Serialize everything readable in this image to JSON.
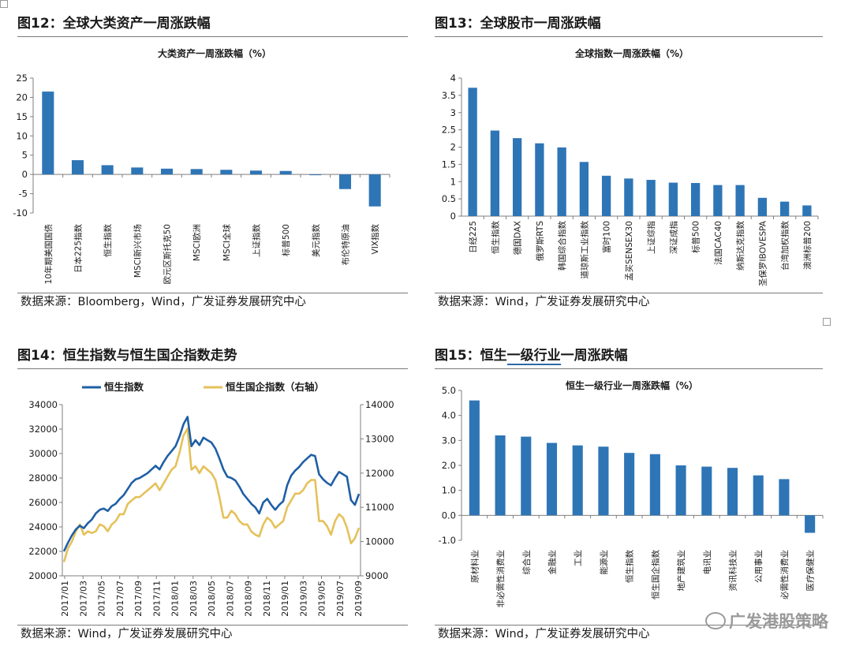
{
  "panels": [
    {
      "fig_label": "图12",
      "fig_sep": "：",
      "fig_title": "全球大类资产一周涨跌幅",
      "source": "数据来源：Bloomberg，Wind，广发证券发展研究中心"
    },
    {
      "fig_label": "图13",
      "fig_sep": "：",
      "fig_title": "全球股市一周涨跌幅",
      "source": "数据来源：Wind，广发证券发展研究中心"
    },
    {
      "fig_label": "图14",
      "fig_sep": "：",
      "fig_title": "恒生指数与恒生国企指数走势",
      "source": "数据来源：Wind，广发证券发展研究中心"
    },
    {
      "fig_label": "图15",
      "fig_sep": "：",
      "fig_title_pre": "恒生",
      "fig_title_u": "一级行业",
      "fig_title_post": "一周涨跌幅",
      "source": "数据来源：Wind，广发证券发展研究中心"
    }
  ],
  "watermark": "广发港股策略",
  "colors": {
    "bar": "#2e75b6",
    "hsi": "#1f5fa5",
    "hscei": "#e5c15a",
    "axis": "#7f7f7f"
  },
  "chart_data": [
    {
      "type": "bar",
      "title": "大类资产一周涨跌幅（%）",
      "categories": [
        "10年期美国国债",
        "日本225指数",
        "恒生指数",
        "MSCI新兴市场",
        "欧元区斯托克50",
        "MSCI欧洲",
        "MSCI全球",
        "上证指数",
        "标普500",
        "美元指数",
        "布伦特原油",
        "VIX指数"
      ],
      "values": [
        21.5,
        3.7,
        2.4,
        1.8,
        1.5,
        1.4,
        1.2,
        1.0,
        0.9,
        -0.2,
        -3.8,
        -8.3
      ],
      "ylim": [
        -10,
        25
      ],
      "yticks": [
        -10,
        -5,
        0,
        5,
        10,
        15,
        20,
        25
      ]
    },
    {
      "type": "bar",
      "title": "全球指数一周涨跌幅（%）",
      "categories": [
        "日经225",
        "恒生指数",
        "德国DAX",
        "俄罗斯RTS",
        "韩国综合指数",
        "道琼斯工业指数",
        "富时100",
        "孟买SENSEX30",
        "上证综指",
        "深证成指",
        "标普500",
        "法国CAC40",
        "纳斯达克指数",
        "圣保罗IBOVESPA",
        "台湾加权指数",
        "澳洲标普200"
      ],
      "values": [
        3.72,
        2.48,
        2.26,
        2.11,
        1.99,
        1.57,
        1.17,
        1.09,
        1.05,
        0.97,
        0.96,
        0.9,
        0.9,
        0.53,
        0.42,
        0.31
      ],
      "ylim": [
        0,
        4
      ],
      "yticks": [
        0,
        0.5,
        1,
        1.5,
        2,
        2.5,
        3,
        3.5,
        4
      ]
    },
    {
      "type": "line",
      "legend": [
        "恒生指数",
        "恒生国企指数（右轴）"
      ],
      "x_labels": [
        "2017/01",
        "2017/03",
        "2017/05",
        "2017/07",
        "2017/09",
        "2017/11",
        "2018/01",
        "2018/03",
        "2018/05",
        "2018/07",
        "2018/09",
        "2018/11",
        "2019/01",
        "2019/03",
        "2019/05",
        "2019/07",
        "2019/09"
      ],
      "ylim_left": [
        20000,
        34000
      ],
      "yticks_left": [
        20000,
        22000,
        24000,
        26000,
        28000,
        30000,
        32000,
        34000
      ],
      "ylim_right": [
        9000,
        14000
      ],
      "yticks_right": [
        9000,
        10000,
        11000,
        12000,
        13000,
        14000
      ],
      "series": [
        {
          "name": "恒生指数",
          "axis": "left",
          "values": [
            22000,
            22700,
            23300,
            23800,
            24100,
            23900,
            24300,
            24600,
            25100,
            25400,
            25500,
            25300,
            25700,
            25900,
            26300,
            26600,
            27100,
            27600,
            27900,
            28000,
            28200,
            28400,
            28700,
            29000,
            28700,
            29300,
            29800,
            30200,
            30600,
            31400,
            32400,
            33000,
            30600,
            31100,
            30700,
            31300,
            31100,
            30900,
            30400,
            29600,
            28700,
            28100,
            28000,
            27800,
            27300,
            26700,
            26300,
            25900,
            25600,
            25100,
            26000,
            26300,
            25800,
            25400,
            25800,
            26100,
            27400,
            28200,
            28600,
            28900,
            29300,
            29600,
            29900,
            29800,
            28300,
            27900,
            27600,
            27400,
            28000,
            28500,
            28300,
            28100,
            26200,
            25800,
            26700
          ]
        },
        {
          "name": "恒生国企指数（右轴）",
          "axis": "right",
          "values": [
            9400,
            9800,
            10000,
            10300,
            10500,
            10200,
            10300,
            10250,
            10300,
            10500,
            10450,
            10300,
            10500,
            10600,
            10800,
            10800,
            11100,
            11200,
            11300,
            11300,
            11400,
            11500,
            11600,
            11700,
            11500,
            11700,
            11900,
            12100,
            12200,
            12600,
            13100,
            13300,
            12100,
            12200,
            12000,
            12200,
            12100,
            12000,
            11800,
            11300,
            10700,
            10700,
            10900,
            10800,
            10600,
            10500,
            10500,
            10300,
            10200,
            10150,
            10500,
            10700,
            10600,
            10400,
            10500,
            10600,
            11000,
            11200,
            11400,
            11400,
            11500,
            11700,
            11800,
            11800,
            10600,
            10600,
            10450,
            10200,
            10600,
            10800,
            10700,
            10400,
            9950,
            10100,
            10400
          ]
        }
      ]
    },
    {
      "type": "bar",
      "title": "恒生一级行业一周涨跌幅（%）",
      "categories": [
        "原材料业",
        "非必需性消费业",
        "综合业",
        "金融业",
        "工业",
        "能源业",
        "恒生指数",
        "恒生国企指数",
        "地产建筑业",
        "电讯业",
        "资讯科技业",
        "公用事业",
        "必需性消费业",
        "医疗保健业"
      ],
      "values": [
        4.6,
        3.2,
        3.15,
        2.9,
        2.8,
        2.75,
        2.5,
        2.45,
        2.0,
        1.95,
        1.9,
        1.6,
        1.45,
        -0.7
      ],
      "ylim": [
        -1.0,
        5.0
      ],
      "yticks": [
        -1.0,
        0.0,
        1.0,
        2.0,
        3.0,
        4.0,
        5.0
      ]
    }
  ]
}
